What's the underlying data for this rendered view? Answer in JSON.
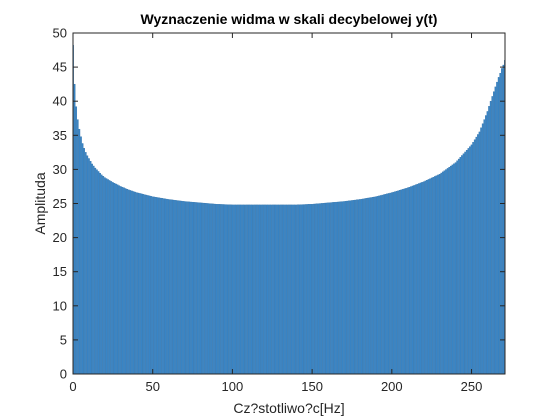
{
  "chart_data": {
    "type": "bar",
    "title": "Wyznaczenie widma w skali decybelowej y(t)",
    "xlabel": "Cz?stotliwo?c[Hz]",
    "ylabel": "Amplituda",
    "xlim": [
      0,
      271
    ],
    "ylim": [
      0,
      50
    ],
    "xticks": [
      0,
      50,
      100,
      150,
      200,
      250
    ],
    "yticks": [
      0,
      5,
      10,
      15,
      20,
      25,
      30,
      35,
      40,
      45,
      50
    ],
    "grid": false,
    "legend": "none",
    "bar_color": "#3a87c8",
    "bar_edge_color": "#2c6ea8",
    "x": [
      0,
      1,
      2,
      3,
      4,
      5,
      6,
      7,
      8,
      9,
      10,
      12,
      14,
      16,
      18,
      20,
      25,
      30,
      35,
      40,
      45,
      50,
      60,
      70,
      80,
      90,
      100,
      110,
      120,
      130,
      136,
      140,
      150,
      160,
      170,
      180,
      190,
      200,
      210,
      220,
      230,
      240,
      250,
      255,
      260,
      262,
      264,
      266,
      267,
      268,
      269,
      270,
      271
    ],
    "values": [
      48.2,
      42.5,
      39.2,
      37.3,
      35.9,
      34.8,
      33.8,
      33.1,
      32.5,
      32.0,
      31.6,
      30.8,
      30.2,
      29.7,
      29.2,
      28.8,
      28.1,
      27.5,
      27.0,
      26.6,
      26.3,
      26.0,
      25.6,
      25.3,
      25.1,
      24.9,
      24.8,
      24.8,
      24.8,
      24.8,
      24.8,
      24.8,
      24.9,
      25.1,
      25.3,
      25.6,
      26.0,
      26.6,
      27.3,
      28.2,
      29.3,
      31.0,
      33.6,
      35.5,
      38.5,
      40.0,
      41.4,
      42.8,
      43.5,
      44.1,
      44.8,
      45.3,
      46.0
    ]
  }
}
